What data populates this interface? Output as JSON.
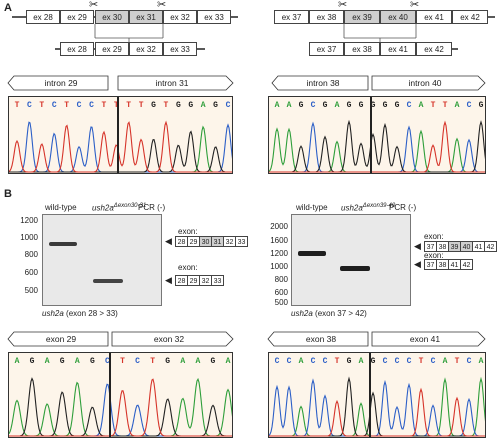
{
  "panel_a": {
    "letter": "A",
    "left": {
      "exons_top": [
        "ex 28",
        "ex 29",
        "ex 30",
        "ex 31",
        "ex 32",
        "ex 33"
      ],
      "exons_bottom": [
        "ex 28",
        "ex 29",
        "ex 32",
        "ex 33"
      ],
      "introns": [
        "intron 29",
        "intron 31"
      ],
      "seq_left": [
        "T",
        "C",
        "T",
        "C",
        "T",
        "C",
        "C",
        "T",
        "T"
      ],
      "seq_right": [
        "T",
        "T",
        "G",
        "T",
        "G",
        "G",
        "A",
        "G",
        "C"
      ]
    },
    "right": {
      "exons_top": [
        "ex 37",
        "ex 38",
        "ex 39",
        "ex 40",
        "ex 41",
        "ex 42"
      ],
      "exons_bottom": [
        "ex 37",
        "ex 38",
        "ex 41",
        "ex 42"
      ],
      "introns": [
        "intron 38",
        "intron 40"
      ],
      "seq_left": [
        "A",
        "A",
        "G",
        "C",
        "G",
        "A",
        "G",
        "G",
        "G"
      ],
      "seq_right": [
        "G",
        "G",
        "C",
        "A",
        "T",
        "T",
        "A",
        "C",
        "G"
      ]
    }
  },
  "panel_b": {
    "letter": "B",
    "left": {
      "lane_wt": "wild-type",
      "lane_mut": "ush2a",
      "lane_mut_sup": "Δexon30-31",
      "lane_pcr": "PCR (-)",
      "ladder": [
        "1200",
        "1000",
        "800",
        "600",
        "500"
      ],
      "exon_label_1": "exon:",
      "exon_label_2": "exon:",
      "exons_full": [
        "28",
        "29",
        "30",
        "31",
        "32",
        "33"
      ],
      "exons_del": [
        "28",
        "29",
        "32",
        "33"
      ],
      "caption": "ush2a (exon 28 > 33)",
      "exon_pair": [
        "exon 29",
        "exon 32"
      ],
      "seq_left": [
        "A",
        "G",
        "A",
        "G",
        "A",
        "G"
      ],
      "seq_right": [
        "C",
        "T",
        "C",
        "T",
        "G",
        "A",
        "A",
        "G",
        "A"
      ]
    },
    "right": {
      "lane_wt": "wild-type",
      "lane_mut": "ush2a",
      "lane_mut_sup": "Δexon39-40",
      "lane_pcr": "PCR (-)",
      "ladder": [
        "2000",
        "1600",
        "1200",
        "1000",
        "800",
        "600",
        "500"
      ],
      "exon_label_1": "exon:",
      "exon_label_2": "exon:",
      "exons_full": [
        "37",
        "38",
        "39",
        "40",
        "41",
        "42"
      ],
      "exons_del": [
        "37",
        "38",
        "41",
        "42"
      ],
      "caption": "ush2a (exon 37 > 42)",
      "exon_pair": [
        "exon 38",
        "exon 41"
      ],
      "seq_left": [
        "C",
        "C",
        "A",
        "C",
        "C",
        "T",
        "G",
        "A",
        "G"
      ],
      "seq_right": [
        "C",
        "C",
        "C",
        "T",
        "C",
        "A",
        "T",
        "C",
        "A"
      ]
    }
  },
  "colors": {
    "A": "#2e9e3a",
    "C": "#2c5fc7",
    "G": "#222222",
    "T": "#d6342a",
    "chrom_bg": "#fdf5ea"
  }
}
